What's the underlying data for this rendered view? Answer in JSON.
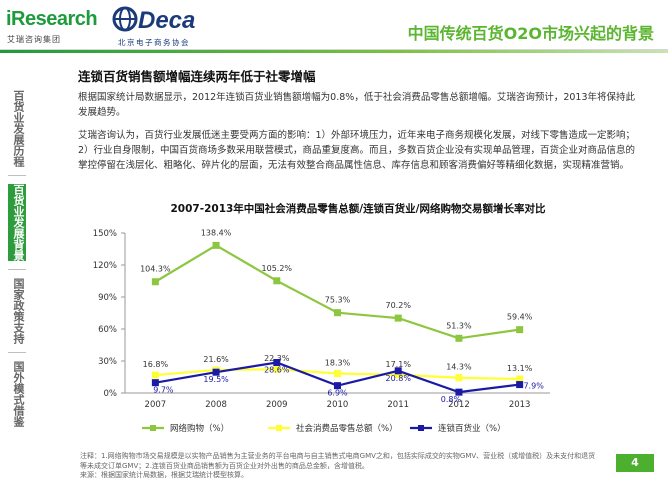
{
  "header": {
    "logo_iresearch": "iResearch",
    "logo_iresearch_sub": "艾瑞咨询集团",
    "logo_ideca": "Deca",
    "logo_ideca_sub": "北京电子商务协会",
    "title": "中国传统百货O2O市场兴起的背景"
  },
  "sidebar": {
    "items": [
      {
        "label": "百货业发展历程",
        "active": false
      },
      {
        "label": "百货业发展背景",
        "active": true
      },
      {
        "label": "国家政策支持",
        "active": false
      },
      {
        "label": "国外模式借鉴",
        "active": false
      }
    ]
  },
  "content": {
    "heading": "连锁百货销售额增幅连续两年低于社零增幅",
    "para1": "根据国家统计局数据显示，2012年连锁百货业销售额增幅为0.8%，低于社会消费品零售总额增幅。艾瑞咨询预计，2013年将保持此发展趋势。",
    "para2": "艾瑞咨询认为，百货行业发展低迷主要受两方面的影响：1）外部环境压力，近年来电子商务规模化发展，对线下零售造成一定影响；2）行业自身限制，中国百货商场多数采用联营模式，商品重复度高。而且，多数百货企业没有实现单品管理，百货企业对商品信息的掌控停留在浅层化、粗略化、碎片化的层面，无法有效整合商品属性信息、库存信息和顾客消费偏好等精细化数据，实现精准营销。"
  },
  "chart_data": {
    "type": "line",
    "title": "2007-2013年中国社会消费品零售总额/连锁百货业/网络购物交易额增长率对比",
    "categories": [
      "2007",
      "2008",
      "2009",
      "2010",
      "2011",
      "2012",
      "2013"
    ],
    "ylim": [
      0,
      150
    ],
    "yticks": [
      "0%",
      "30%",
      "60%",
      "90%",
      "120%",
      "150%"
    ],
    "ytick_values": [
      0,
      30,
      60,
      90,
      120,
      150
    ],
    "xlabel": "",
    "ylabel": "",
    "legend_position": "bottom",
    "series": [
      {
        "name": "网络购物（%）",
        "color": "#8dc63f",
        "marker": "square",
        "values": [
          104.3,
          138.4,
          105.2,
          75.3,
          70.2,
          51.3,
          59.4
        ],
        "labels": [
          "104.3%",
          "138.4%",
          "105.2%",
          "75.3%",
          "70.2%",
          "51.3%",
          "59.4%"
        ]
      },
      {
        "name": "社会消费品零售总额（%）",
        "color": "#ffff33",
        "marker": "square",
        "values": [
          16.8,
          21.6,
          22.3,
          18.3,
          17.1,
          14.3,
          13.1
        ],
        "labels": [
          "16.8%",
          "21.6%",
          "22.3%",
          "18.3%",
          "17.1%",
          "14.3%",
          "13.1%"
        ]
      },
      {
        "name": "连锁百货业（%）",
        "color": "#1a1aa6",
        "marker": "square",
        "values": [
          9.7,
          19.5,
          28.6,
          6.9,
          20.8,
          0.8,
          7.9
        ],
        "labels": [
          "9.7%",
          "19.5%",
          "28.6%",
          "6.9%",
          "20.8%",
          "0.8%",
          "7.9%"
        ]
      }
    ]
  },
  "footnotes": {
    "note1": "注释：1.网络购物市场交易规模是以实物产品销售为主营业务的平台电商与自主销售式电商GMV之和，包括实际成交的实物GMV、营业税（或增值税）及未支付和退货等未成交订单GMV；2.连锁百货业商品销售额为百货企业对外出售的商品总金额，含增值税。",
    "source": "来源：根据国家统计局数据，根据艾瑞统计模型核算。"
  },
  "page": {
    "number": "4"
  }
}
